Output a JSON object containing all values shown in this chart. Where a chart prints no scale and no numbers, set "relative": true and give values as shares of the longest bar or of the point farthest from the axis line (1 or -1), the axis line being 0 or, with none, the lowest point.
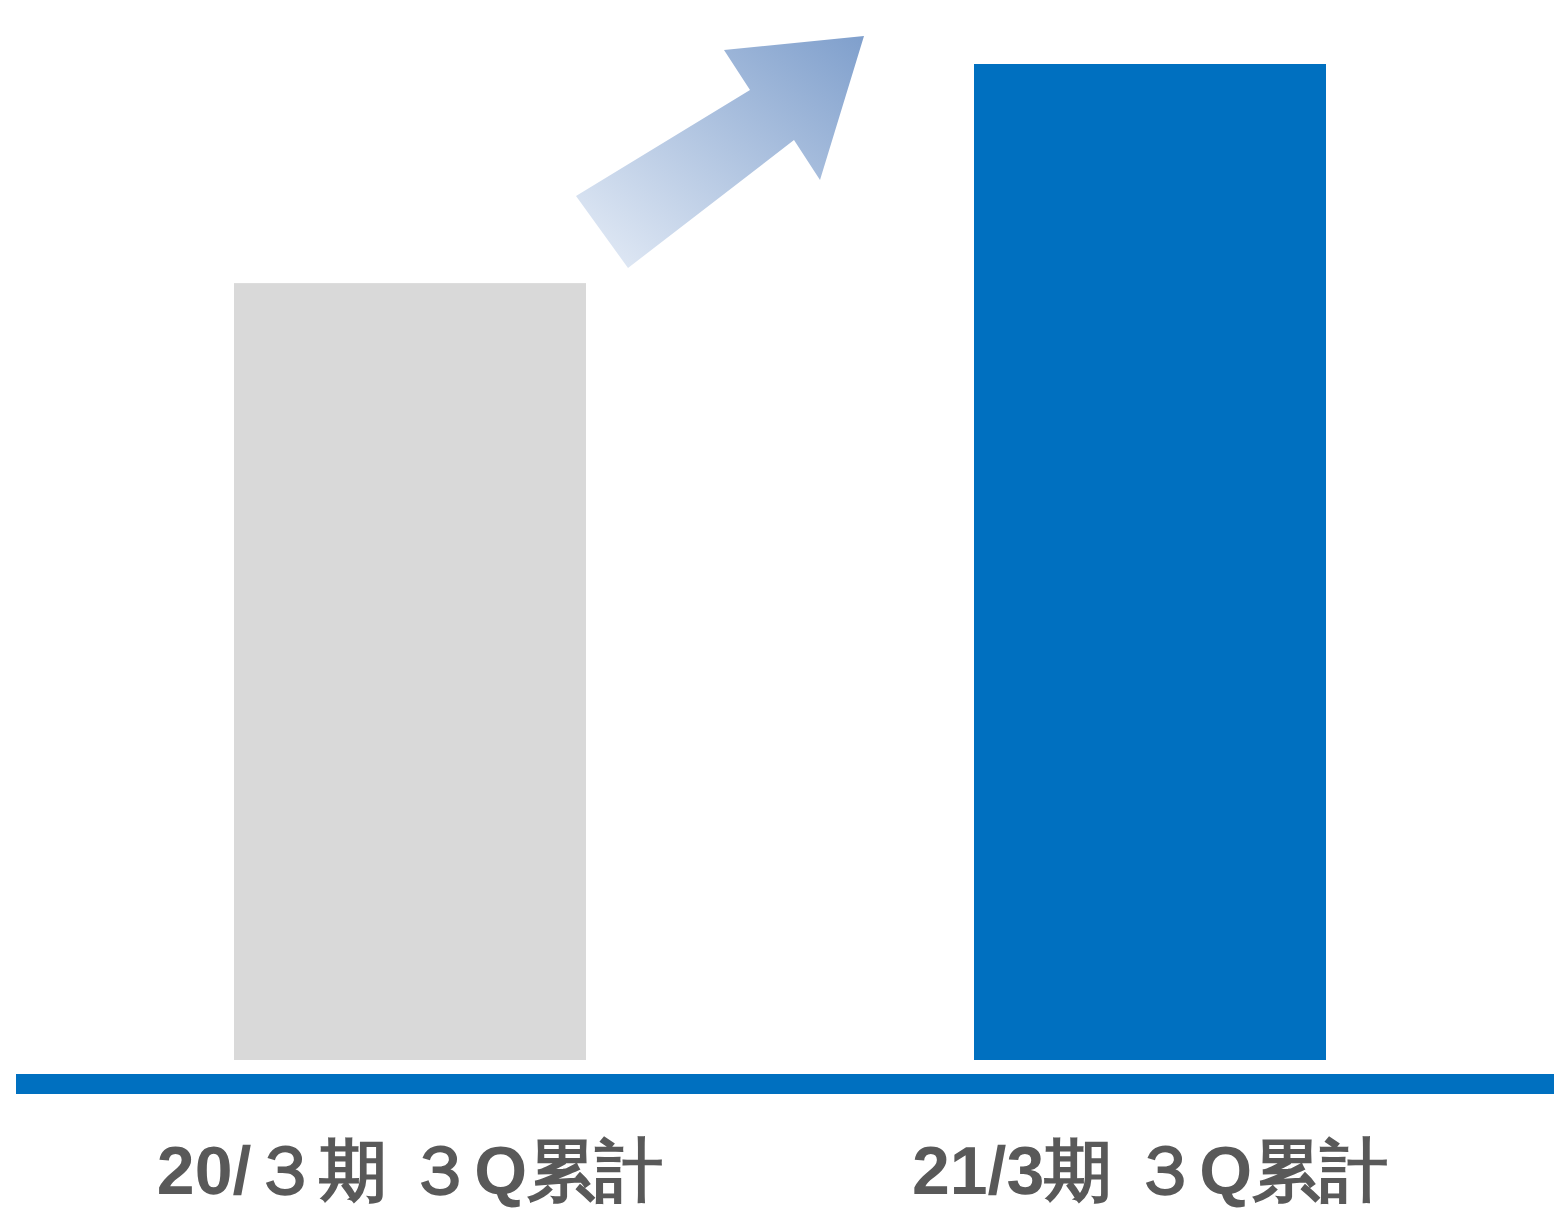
{
  "chart_data": {
    "type": "bar",
    "relative": true,
    "categories": [
      "20/３期 ３Q累計",
      "21/3期 ３Q累計"
    ],
    "values": [
      0.78,
      1
    ],
    "colors": [
      "#d9d9d9",
      "#0070c0"
    ]
  }
}
